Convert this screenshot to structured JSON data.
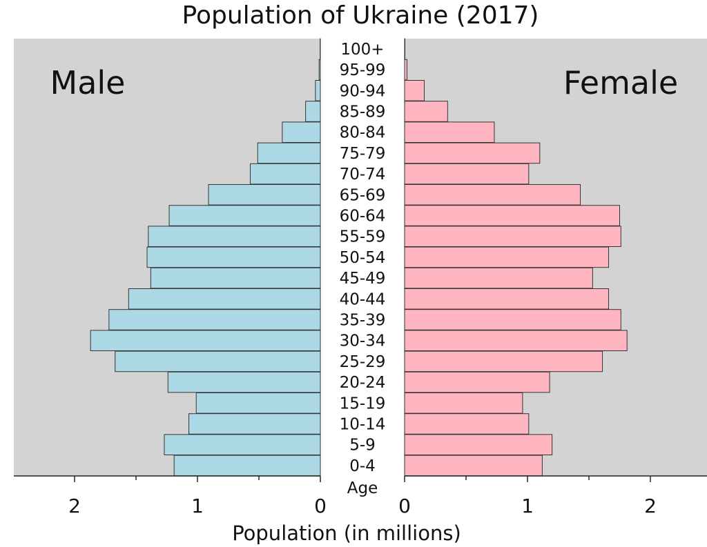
{
  "chart_data": {
    "type": "bar",
    "orientation": "horizontal-pyramid",
    "title": "Population of Ukraine (2017)",
    "xlabel": "Population (in millions)",
    "age_axis_label": "Age",
    "panel_labels": {
      "left": "Male",
      "right": "Female"
    },
    "xlim": [
      0,
      2.5
    ],
    "x_ticks": [
      "2",
      "1",
      "0",
      "0",
      "1",
      "2"
    ],
    "categories": [
      "0-4",
      "5-9",
      "10-14",
      "15-19",
      "20-24",
      "25-29",
      "30-34",
      "35-39",
      "40-44",
      "45-49",
      "50-54",
      "55-59",
      "60-64",
      "65-69",
      "70-74",
      "75-79",
      "80-84",
      "85-89",
      "90-94",
      "95-99",
      "100+"
    ],
    "series": [
      {
        "name": "Male",
        "values": [
          1.19,
          1.27,
          1.07,
          1.01,
          1.24,
          1.67,
          1.87,
          1.72,
          1.56,
          1.38,
          1.41,
          1.4,
          1.23,
          0.91,
          0.57,
          0.51,
          0.31,
          0.12,
          0.04,
          0.01,
          0.002
        ]
      },
      {
        "name": "Female",
        "values": [
          1.12,
          1.2,
          1.01,
          0.96,
          1.18,
          1.61,
          1.81,
          1.76,
          1.66,
          1.53,
          1.66,
          1.76,
          1.75,
          1.43,
          1.01,
          1.1,
          0.73,
          0.35,
          0.16,
          0.02,
          0.003
        ]
      }
    ],
    "colors": {
      "male": "#add8e6",
      "female": "#ffb6c1",
      "panel": "#d3d3d3",
      "bar_edge": "#333333"
    }
  }
}
